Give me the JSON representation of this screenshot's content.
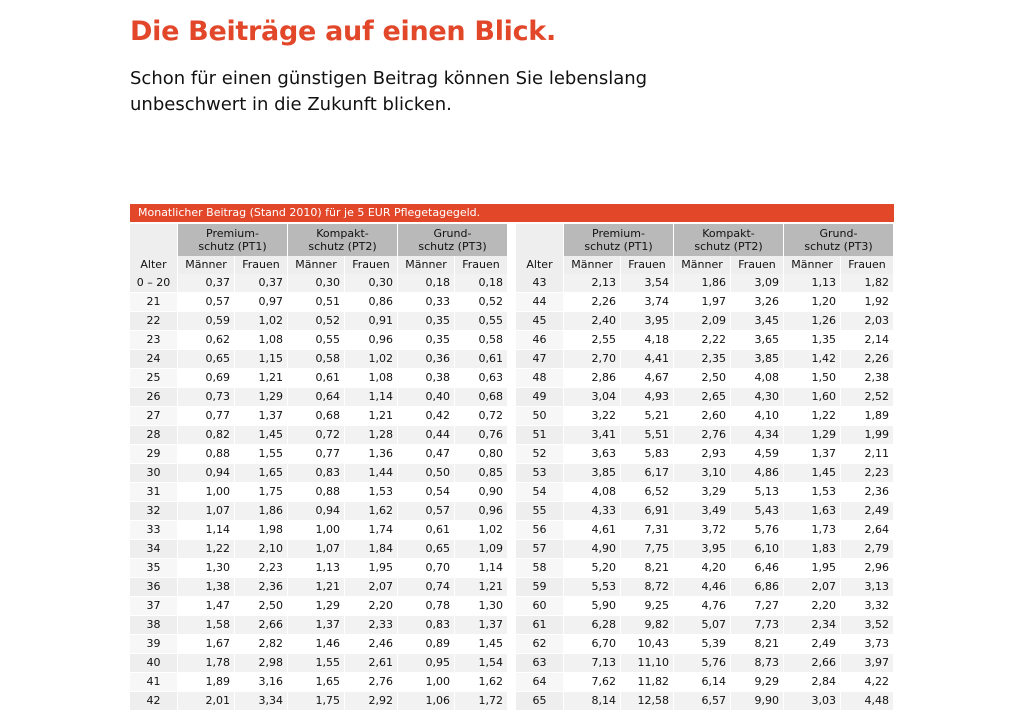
{
  "title": "Die Beiträge auf einen Blick.",
  "subtitle_line1": "Schon für einen günstigen Beitrag können Sie lebenslang",
  "subtitle_line2": "unbeschwert in die Zukunft blicken.",
  "banner": "Monatlicher Beitrag (Stand 2010) für je 5 EUR Pflegetagegeld.",
  "accent_color": "#e2472a",
  "headers": {
    "alter": "Alter",
    "groups": [
      {
        "line1": "Premium-",
        "line2": "schutz (PT1)"
      },
      {
        "line1": "Kompakt-",
        "line2": "schutz (PT2)"
      },
      {
        "line1": "Grund-",
        "line2": "schutz (PT3)"
      }
    ],
    "men": "Männer",
    "women": "Frauen"
  },
  "left_rows": [
    [
      "0 – 20",
      "0,37",
      "0,37",
      "0,30",
      "0,30",
      "0,18",
      "0,18"
    ],
    [
      "21",
      "0,57",
      "0,97",
      "0,51",
      "0,86",
      "0,33",
      "0,52"
    ],
    [
      "22",
      "0,59",
      "1,02",
      "0,52",
      "0,91",
      "0,35",
      "0,55"
    ],
    [
      "23",
      "0,62",
      "1,08",
      "0,55",
      "0,96",
      "0,35",
      "0,58"
    ],
    [
      "24",
      "0,65",
      "1,15",
      "0,58",
      "1,02",
      "0,36",
      "0,61"
    ],
    [
      "25",
      "0,69",
      "1,21",
      "0,61",
      "1,08",
      "0,38",
      "0,63"
    ],
    [
      "26",
      "0,73",
      "1,29",
      "0,64",
      "1,14",
      "0,40",
      "0,68"
    ],
    [
      "27",
      "0,77",
      "1,37",
      "0,68",
      "1,21",
      "0,42",
      "0,72"
    ],
    [
      "28",
      "0,82",
      "1,45",
      "0,72",
      "1,28",
      "0,44",
      "0,76"
    ],
    [
      "29",
      "0,88",
      "1,55",
      "0,77",
      "1,36",
      "0,47",
      "0,80"
    ],
    [
      "30",
      "0,94",
      "1,65",
      "0,83",
      "1,44",
      "0,50",
      "0,85"
    ],
    [
      "31",
      "1,00",
      "1,75",
      "0,88",
      "1,53",
      "0,54",
      "0,90"
    ],
    [
      "32",
      "1,07",
      "1,86",
      "0,94",
      "1,62",
      "0,57",
      "0,96"
    ],
    [
      "33",
      "1,14",
      "1,98",
      "1,00",
      "1,74",
      "0,61",
      "1,02"
    ],
    [
      "34",
      "1,22",
      "2,10",
      "1,07",
      "1,84",
      "0,65",
      "1,09"
    ],
    [
      "35",
      "1,30",
      "2,23",
      "1,13",
      "1,95",
      "0,70",
      "1,14"
    ],
    [
      "36",
      "1,38",
      "2,36",
      "1,21",
      "2,07",
      "0,74",
      "1,21"
    ],
    [
      "37",
      "1,47",
      "2,50",
      "1,29",
      "2,20",
      "0,78",
      "1,30"
    ],
    [
      "38",
      "1,58",
      "2,66",
      "1,37",
      "2,33",
      "0,83",
      "1,37"
    ],
    [
      "39",
      "1,67",
      "2,82",
      "1,46",
      "2,46",
      "0,89",
      "1,45"
    ],
    [
      "40",
      "1,78",
      "2,98",
      "1,55",
      "2,61",
      "0,95",
      "1,54"
    ],
    [
      "41",
      "1,89",
      "3,16",
      "1,65",
      "2,76",
      "1,00",
      "1,62"
    ],
    [
      "42",
      "2,01",
      "3,34",
      "1,75",
      "2,92",
      "1,06",
      "1,72"
    ]
  ],
  "right_rows": [
    [
      "43",
      "2,13",
      "3,54",
      "1,86",
      "3,09",
      "1,13",
      "1,82"
    ],
    [
      "44",
      "2,26",
      "3,74",
      "1,97",
      "3,26",
      "1,20",
      "1,92"
    ],
    [
      "45",
      "2,40",
      "3,95",
      "2,09",
      "3,45",
      "1,26",
      "2,03"
    ],
    [
      "46",
      "2,55",
      "4,18",
      "2,22",
      "3,65",
      "1,35",
      "2,14"
    ],
    [
      "47",
      "2,70",
      "4,41",
      "2,35",
      "3,85",
      "1,42",
      "2,26"
    ],
    [
      "48",
      "2,86",
      "4,67",
      "2,50",
      "4,08",
      "1,50",
      "2,38"
    ],
    [
      "49",
      "3,04",
      "4,93",
      "2,65",
      "4,30",
      "1,60",
      "2,52"
    ],
    [
      "50",
      "3,22",
      "5,21",
      "2,60",
      "4,10",
      "1,22",
      "1,89"
    ],
    [
      "51",
      "3,41",
      "5,51",
      "2,76",
      "4,34",
      "1,29",
      "1,99"
    ],
    [
      "52",
      "3,63",
      "5,83",
      "2,93",
      "4,59",
      "1,37",
      "2,11"
    ],
    [
      "53",
      "3,85",
      "6,17",
      "3,10",
      "4,86",
      "1,45",
      "2,23"
    ],
    [
      "54",
      "4,08",
      "6,52",
      "3,29",
      "5,13",
      "1,53",
      "2,36"
    ],
    [
      "55",
      "4,33",
      "6,91",
      "3,49",
      "5,43",
      "1,63",
      "2,49"
    ],
    [
      "56",
      "4,61",
      "7,31",
      "3,72",
      "5,76",
      "1,73",
      "2,64"
    ],
    [
      "57",
      "4,90",
      "7,75",
      "3,95",
      "6,10",
      "1,83",
      "2,79"
    ],
    [
      "58",
      "5,20",
      "8,21",
      "4,20",
      "6,46",
      "1,95",
      "2,96"
    ],
    [
      "59",
      "5,53",
      "8,72",
      "4,46",
      "6,86",
      "2,07",
      "3,13"
    ],
    [
      "60",
      "5,90",
      "9,25",
      "4,76",
      "7,27",
      "2,20",
      "3,32"
    ],
    [
      "61",
      "6,28",
      "9,82",
      "5,07",
      "7,73",
      "2,34",
      "3,52"
    ],
    [
      "62",
      "6,70",
      "10,43",
      "5,39",
      "8,21",
      "2,49",
      "3,73"
    ],
    [
      "63",
      "7,13",
      "11,10",
      "5,76",
      "8,73",
      "2,66",
      "3,97"
    ],
    [
      "64",
      "7,62",
      "11,82",
      "6,14",
      "9,29",
      "2,84",
      "4,22"
    ],
    [
      "65",
      "8,14",
      "12,58",
      "6,57",
      "9,90",
      "3,03",
      "4,48"
    ]
  ]
}
